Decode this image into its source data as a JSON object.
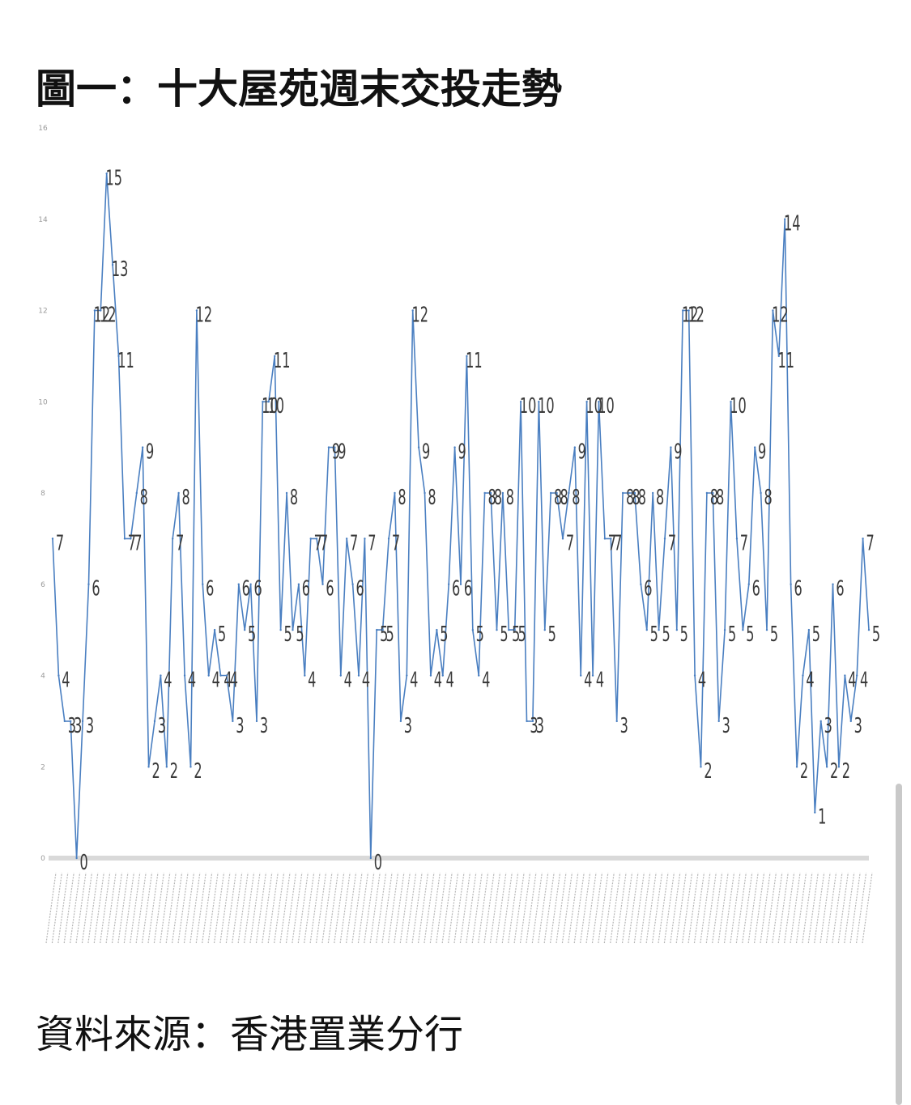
{
  "title": "圖一：十大屋苑週末交投走勢",
  "source": "資料來源：香港置業分行",
  "chart_data": {
    "type": "line",
    "title": "圖一：十大屋苑週末交投走勢",
    "xlabel": "",
    "ylabel": "",
    "ylim": [
      0,
      16
    ],
    "yticks": [
      0,
      2,
      4,
      6,
      8,
      10,
      12,
      14,
      16
    ],
    "grid": false,
    "legend": "none",
    "line_color": "#4a7fc1",
    "baseline_color": "#d9d9d9",
    "series": [
      {
        "values": [
          7,
          4,
          3,
          3,
          0,
          3,
          6,
          12,
          12,
          15,
          13,
          11,
          7,
          7,
          8,
          9,
          2,
          3,
          4,
          2,
          7,
          8,
          4,
          2,
          12,
          6,
          4,
          5,
          4,
          4,
          3,
          6,
          5,
          6,
          3,
          10,
          10,
          11,
          5,
          8,
          5,
          6,
          4,
          7,
          7,
          6,
          9,
          9,
          4,
          7,
          6,
          4,
          7,
          0,
          5,
          5,
          7,
          8,
          3,
          4,
          12,
          9,
          8,
          4,
          5,
          4,
          6,
          9,
          6,
          11,
          5,
          4,
          8,
          8,
          5,
          8,
          5,
          5,
          10,
          3,
          3,
          10,
          5,
          8,
          8,
          7,
          8,
          9,
          4,
          10,
          4,
          10,
          7,
          7,
          3,
          8,
          8,
          8,
          6,
          5,
          8,
          5,
          7,
          9,
          5,
          12,
          12,
          4,
          2,
          8,
          8,
          3,
          5,
          10,
          7,
          5,
          6,
          9,
          8,
          5,
          12,
          11,
          14,
          6,
          2,
          4,
          5,
          1,
          3,
          2,
          6,
          2,
          4,
          3,
          4,
          7,
          5
        ]
      }
    ],
    "x_tick_labels_legible": false
  }
}
